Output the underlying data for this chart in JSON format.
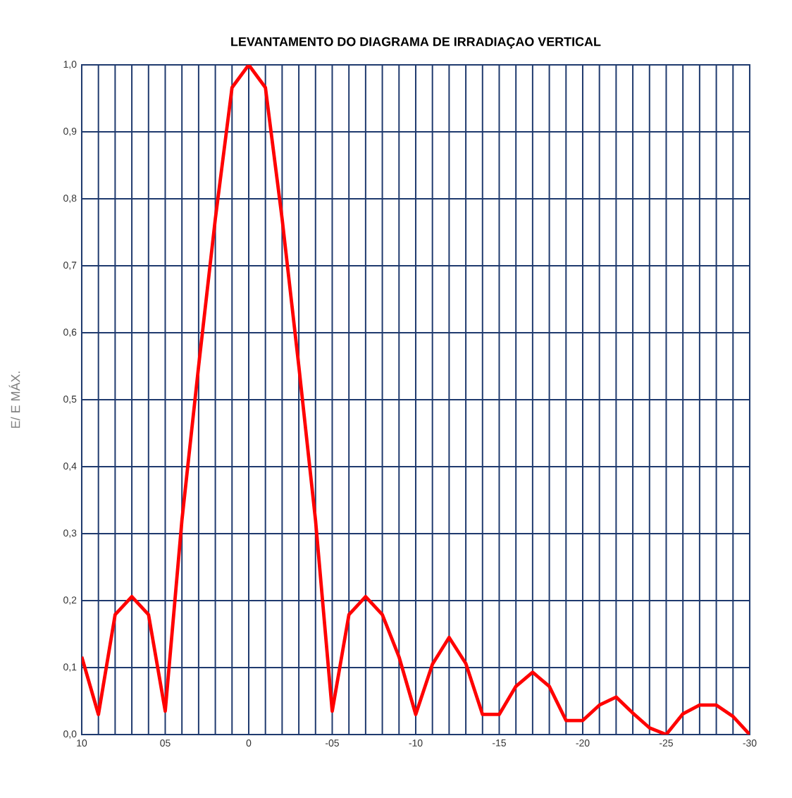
{
  "chart_data": {
    "type": "line",
    "title": "LEVANTAMENTO DO DIAGRAMA DE  IRRADIAÇAO VERTICAL",
    "ylabel": "E/ E MÁX.",
    "x": [
      10,
      9,
      8,
      7,
      6,
      5,
      4,
      3,
      2,
      1,
      0,
      -1,
      -2,
      -3,
      -4,
      -5,
      -6,
      -7,
      -8,
      -9,
      -10,
      -11,
      -12,
      -13,
      -14,
      -15,
      -16,
      -17,
      -18,
      -19,
      -20,
      -21,
      -22,
      -23,
      -24,
      -25,
      -26,
      -27,
      -28,
      -29,
      -30
    ],
    "series": [
      {
        "color": "#ff0000",
        "values": [
          0.116,
          0.03,
          0.179,
          0.206,
          0.179,
          0.035,
          0.32,
          0.55,
          0.77,
          0.966,
          1.0,
          0.966,
          0.77,
          0.55,
          0.32,
          0.035,
          0.179,
          0.206,
          0.179,
          0.116,
          0.03,
          0.105,
          0.145,
          0.106,
          0.03,
          0.03,
          0.072,
          0.093,
          0.072,
          0.021,
          0.021,
          0.044,
          0.056,
          0.032,
          0.01,
          0.0,
          0.031,
          0.044,
          0.044,
          0.027,
          0.0
        ]
      }
    ],
    "xlim": [
      10,
      -30
    ],
    "ylim": [
      0,
      1
    ],
    "xticks": [
      {
        "value": 10,
        "label": "10"
      },
      {
        "value": 9,
        "label": null
      },
      {
        "value": 8,
        "label": null
      },
      {
        "value": 7,
        "label": null
      },
      {
        "value": 6,
        "label": null
      },
      {
        "value": 5,
        "label": "05"
      },
      {
        "value": 4,
        "label": null
      },
      {
        "value": 3,
        "label": null
      },
      {
        "value": 2,
        "label": null
      },
      {
        "value": 1,
        "label": null
      },
      0,
      {
        "value": -1,
        "label": null
      },
      {
        "value": -2,
        "label": null
      },
      {
        "value": -3,
        "label": null
      },
      {
        "value": -4,
        "label": null
      },
      {
        "value": -5,
        "label": "-05"
      },
      {
        "value": -6,
        "label": null
      },
      {
        "value": -7,
        "label": null
      },
      {
        "value": -8,
        "label": null
      },
      {
        "value": -9,
        "label": null
      },
      {
        "value": -10,
        "label": "-10"
      },
      {
        "value": -11,
        "label": null
      },
      {
        "value": -12,
        "label": null
      },
      {
        "value": -13,
        "label": null
      },
      {
        "value": -14,
        "label": null
      },
      {
        "value": -15,
        "label": "-15"
      },
      {
        "value": -16,
        "label": null
      },
      {
        "value": -17,
        "label": null
      },
      {
        "value": -18,
        "label": null
      },
      {
        "value": -19,
        "label": null
      },
      {
        "value": -20,
        "label": "-20"
      },
      {
        "value": -21,
        "label": null
      },
      {
        "value": -22,
        "label": null
      },
      {
        "value": -23,
        "label": null
      },
      {
        "value": -24,
        "label": null
      },
      {
        "value": -25,
        "label": "-25"
      },
      {
        "value": -26,
        "label": null
      },
      {
        "value": -27,
        "label": null
      },
      {
        "value": -28,
        "label": null
      },
      {
        "value": -29,
        "label": null
      },
      {
        "value": -30,
        "label": "-30"
      }
    ],
    "yticks": [
      {
        "value": 0,
        "label": "0,0"
      },
      {
        "value": 0.1,
        "label": "0,1"
      },
      {
        "value": 0.2,
        "label": "0,2"
      },
      {
        "value": 0.3,
        "label": "0,3"
      },
      {
        "value": 0.4,
        "label": "0,4"
      },
      {
        "value": 0.5,
        "label": "0,5"
      },
      {
        "value": 0.6,
        "label": "0,6"
      },
      {
        "value": 0.7,
        "label": "0,7"
      },
      {
        "value": 0.8,
        "label": "0,8"
      },
      {
        "value": 0.9,
        "label": "0,9"
      },
      {
        "value": 1,
        "label": "1,0"
      }
    ],
    "grid": true,
    "marker": "none",
    "line_style": "solid"
  }
}
